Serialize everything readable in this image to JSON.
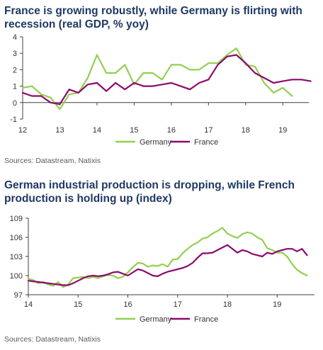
{
  "colors": {
    "title": "#1f3864",
    "germany": "#92d050",
    "france": "#8b0a6e",
    "axis": "#404040",
    "text": "#333333"
  },
  "chart_data": [
    {
      "type": "line",
      "title": "France is growing robustly, while Germany is flirting with recession (real GDP, % yoy)",
      "xlabel": "",
      "ylabel": "",
      "xlim": [
        12,
        19.7
      ],
      "ylim": [
        -1,
        4
      ],
      "x_ticks": [
        "12",
        "13",
        "14",
        "15",
        "16",
        "17",
        "18",
        "19"
      ],
      "y_ticks": [
        "4",
        "3",
        "2",
        "1",
        "0",
        "-1"
      ],
      "grid": false,
      "legend": "bottom-center",
      "source": "Sources: Datastream, Natixis",
      "series": [
        {
          "name": "Germany",
          "color": "#92d050",
          "x": [
            12.0,
            12.25,
            12.5,
            12.75,
            13.0,
            13.25,
            13.5,
            13.75,
            14.0,
            14.25,
            14.5,
            14.75,
            15.0,
            15.25,
            15.5,
            15.75,
            16.0,
            16.25,
            16.5,
            16.75,
            17.0,
            17.25,
            17.5,
            17.75,
            18.0,
            18.25,
            18.5,
            18.75,
            19.0,
            19.25,
            19.5
          ],
          "values": [
            0.9,
            1.0,
            0.5,
            0.3,
            -0.4,
            0.5,
            0.6,
            1.5,
            2.9,
            1.8,
            1.8,
            2.3,
            1.1,
            1.8,
            1.8,
            1.4,
            2.3,
            2.3,
            2.0,
            2.0,
            2.4,
            2.4,
            2.9,
            3.3,
            2.3,
            2.2,
            1.2,
            0.6,
            0.9,
            0.4,
            null
          ]
        },
        {
          "name": "France",
          "color": "#8b0a6e",
          "x": [
            12.0,
            12.25,
            12.5,
            12.75,
            13.0,
            13.25,
            13.5,
            13.75,
            14.0,
            14.25,
            14.5,
            14.75,
            15.0,
            15.25,
            15.5,
            15.75,
            16.0,
            16.25,
            16.5,
            16.75,
            17.0,
            17.25,
            17.5,
            17.75,
            18.0,
            18.25,
            18.5,
            18.75,
            19.0,
            19.25,
            19.5,
            19.75
          ],
          "values": [
            0.6,
            0.4,
            0.4,
            0.0,
            -0.1,
            0.8,
            0.6,
            1.1,
            1.2,
            0.7,
            1.2,
            0.8,
            1.2,
            1.0,
            1.0,
            1.1,
            1.2,
            1.0,
            0.8,
            1.2,
            1.4,
            2.3,
            2.8,
            2.9,
            2.4,
            1.8,
            1.5,
            1.2,
            1.3,
            1.4,
            1.4,
            1.3
          ]
        }
      ]
    },
    {
      "type": "line",
      "title": "German industrial production is dropping, while French production is holding up (index)",
      "xlabel": "",
      "ylabel": "",
      "xlim": [
        14,
        19.75
      ],
      "ylim": [
        97,
        109
      ],
      "x_ticks": [
        "14",
        "15",
        "16",
        "17",
        "18",
        "19"
      ],
      "y_ticks": [
        "109",
        "106",
        "103",
        "100",
        "97"
      ],
      "grid": false,
      "legend": "bottom-center",
      "source": "Sources: Datastream, Natixis",
      "series": [
        {
          "name": "Germany",
          "color": "#92d050",
          "x": [
            14.0,
            14.1,
            14.2,
            14.3,
            14.4,
            14.5,
            14.6,
            14.7,
            14.8,
            14.9,
            15.0,
            15.1,
            15.2,
            15.3,
            15.4,
            15.5,
            15.6,
            15.7,
            15.8,
            15.9,
            16.0,
            16.1,
            16.2,
            16.3,
            16.4,
            16.5,
            16.6,
            16.7,
            16.8,
            16.9,
            17.0,
            17.1,
            17.2,
            17.3,
            17.4,
            17.5,
            17.6,
            17.7,
            17.8,
            17.9,
            18.0,
            18.1,
            18.2,
            18.3,
            18.4,
            18.5,
            18.6,
            18.7,
            18.8,
            18.9,
            19.0,
            19.1,
            19.2,
            19.3,
            19.4,
            19.5,
            19.6
          ],
          "values": [
            99.5,
            99.3,
            98.8,
            99.0,
            98.6,
            98.4,
            99.0,
            98.2,
            98.6,
            99.6,
            99.7,
            99.8,
            99.6,
            99.8,
            99.6,
            99.9,
            100.1,
            100.0,
            99.6,
            99.8,
            100.5,
            101.3,
            102.0,
            101.9,
            101.4,
            101.6,
            101.5,
            101.8,
            101.4,
            102.5,
            102.6,
            103.5,
            104.2,
            104.8,
            105.2,
            105.8,
            106.0,
            106.6,
            107.0,
            107.5,
            106.6,
            106.2,
            105.9,
            106.5,
            106.8,
            106.6,
            106.0,
            105.6,
            104.3,
            104.0,
            103.6,
            103.6,
            103.0,
            101.8,
            100.9,
            100.4,
            100.0
          ]
        },
        {
          "name": "France",
          "color": "#8b0a6e",
          "x": [
            14.0,
            14.1,
            14.2,
            14.3,
            14.4,
            14.5,
            14.6,
            14.7,
            14.8,
            14.9,
            15.0,
            15.1,
            15.2,
            15.3,
            15.4,
            15.5,
            15.6,
            15.7,
            15.8,
            15.9,
            16.0,
            16.1,
            16.2,
            16.3,
            16.4,
            16.5,
            16.6,
            16.7,
            16.8,
            16.9,
            17.0,
            17.1,
            17.2,
            17.3,
            17.4,
            17.5,
            17.6,
            17.7,
            17.8,
            17.9,
            18.0,
            18.1,
            18.2,
            18.3,
            18.4,
            18.5,
            18.6,
            18.7,
            18.8,
            18.9,
            19.0,
            19.1,
            19.2,
            19.3,
            19.4,
            19.5,
            19.6
          ],
          "values": [
            99.2,
            99.1,
            99.0,
            98.9,
            98.8,
            98.7,
            98.6,
            98.5,
            98.5,
            98.8,
            99.2,
            99.6,
            99.9,
            100.0,
            99.9,
            100.0,
            100.2,
            100.5,
            100.6,
            100.3,
            100.0,
            100.5,
            101.0,
            100.8,
            100.4,
            100.0,
            99.9,
            100.3,
            100.6,
            100.8,
            101.0,
            101.2,
            101.5,
            102.0,
            102.8,
            103.5,
            103.5,
            103.6,
            104.0,
            104.4,
            104.8,
            104.2,
            103.6,
            104.0,
            103.8,
            103.4,
            103.2,
            103.0,
            103.6,
            103.4,
            103.8,
            104.0,
            104.2,
            104.2,
            103.8,
            104.2,
            103.2
          ]
        }
      ]
    }
  ]
}
